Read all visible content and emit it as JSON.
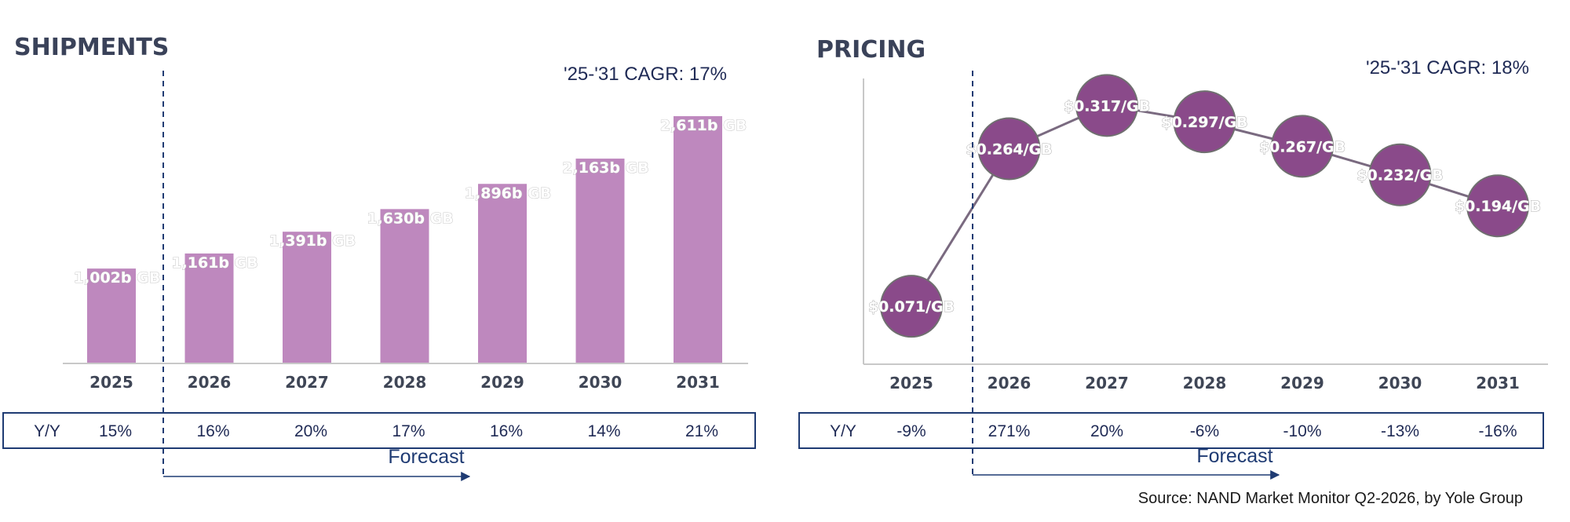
{
  "colors": {
    "bar": "#be88be",
    "bubble": "#8a4a8a",
    "line": "#7a6a80",
    "navy": "#1f3b73",
    "axis": "#c8c8c8"
  },
  "source": "Source: NAND Market Monitor Q2-2026, by Yole Group",
  "chart_data": [
    {
      "type": "bar",
      "title": "SHIPMENTS",
      "cagr": "'25-'31 CAGR: 17%",
      "categories": [
        "2025",
        "2026",
        "2027",
        "2028",
        "2029",
        "2030",
        "2031"
      ],
      "values": [
        1002,
        1161,
        1391,
        1630,
        1896,
        2163,
        2611
      ],
      "data_labels": [
        "1,002b GB",
        "1,161b GB",
        "1,391b GB",
        "1,630b GB",
        "1,896b GB",
        "2,163b GB",
        "2,611b GB"
      ],
      "ylim": [
        0,
        2611
      ],
      "yy_label": "Y/Y",
      "yy": [
        "15%",
        "16%",
        "20%",
        "17%",
        "16%",
        "14%",
        "21%"
      ],
      "forecast_label": "Forecast"
    },
    {
      "type": "line",
      "title": "PRICING",
      "cagr": "'25-'31 CAGR: 18%",
      "categories": [
        "2025",
        "2026",
        "2027",
        "2028",
        "2029",
        "2030",
        "2031"
      ],
      "values": [
        0.071,
        0.264,
        0.317,
        0.297,
        0.267,
        0.232,
        0.194
      ],
      "data_labels": [
        "$0.071/GB",
        "$0.264/GB",
        "$0.317/GB",
        "$0.297/GB",
        "$0.267/GB",
        "$0.232/GB",
        "$0.194/GB"
      ],
      "ylim": [
        0,
        0.35
      ],
      "yy_label": "Y/Y",
      "yy": [
        "-9%",
        "271%",
        "20%",
        "-6%",
        "-10%",
        "-13%",
        "-16%"
      ],
      "forecast_label": "Forecast"
    }
  ]
}
